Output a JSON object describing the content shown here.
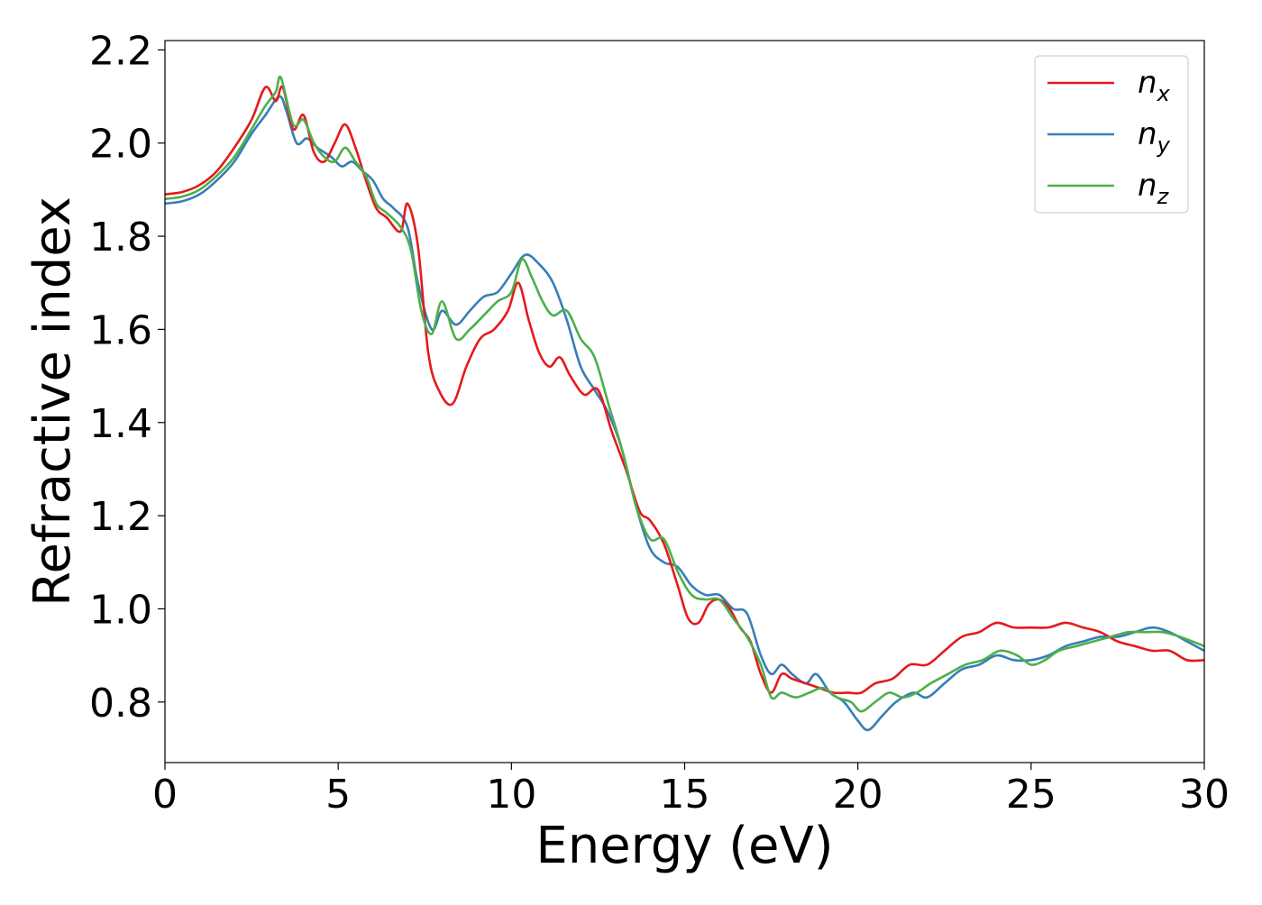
{
  "chart_data": {
    "type": "line",
    "title": "",
    "xlabel": "Energy (eV)",
    "ylabel": "Refractive index",
    "xlim": [
      0,
      30
    ],
    "ylim": [
      0.67,
      2.22
    ],
    "xticks": [
      0,
      5,
      10,
      15,
      20,
      25,
      30
    ],
    "yticks": [
      0.8,
      1.0,
      1.2,
      1.4,
      1.6,
      1.8,
      2.0,
      2.2
    ],
    "grid": false,
    "legend_position": "top-right",
    "series": [
      {
        "name": "n_x",
        "base": "n",
        "sub": "x",
        "color": "#e41a1c",
        "x": [
          0,
          0.5,
          1,
          1.5,
          2,
          2.5,
          2.9,
          3.2,
          3.4,
          3.7,
          4.0,
          4.3,
          4.6,
          4.9,
          5.2,
          5.5,
          5.8,
          6.1,
          6.4,
          6.8,
          7.0,
          7.3,
          7.6,
          7.9,
          8.3,
          8.7,
          9.1,
          9.5,
          9.9,
          10.2,
          10.5,
          10.8,
          11.1,
          11.4,
          11.7,
          12.1,
          12.5,
          12.9,
          13.3,
          13.7,
          14.0,
          14.4,
          14.8,
          15.1,
          15.4,
          15.7,
          16.0,
          16.3,
          16.6,
          16.9,
          17.2,
          17.5,
          17.8,
          18.1,
          18.5,
          18.9,
          19.3,
          19.7,
          20.1,
          20.5,
          21.0,
          21.5,
          22.0,
          22.5,
          23.0,
          23.5,
          24.0,
          24.5,
          25.0,
          25.5,
          26.0,
          26.5,
          27.0,
          27.5,
          28.0,
          28.5,
          29.0,
          29.5,
          30.0
        ],
        "y": [
          1.89,
          1.895,
          1.91,
          1.94,
          1.99,
          2.05,
          2.12,
          2.09,
          2.12,
          2.03,
          2.06,
          1.98,
          1.96,
          2.0,
          2.04,
          1.99,
          1.92,
          1.86,
          1.84,
          1.81,
          1.87,
          1.78,
          1.55,
          1.47,
          1.44,
          1.52,
          1.58,
          1.6,
          1.64,
          1.7,
          1.62,
          1.55,
          1.52,
          1.54,
          1.5,
          1.46,
          1.47,
          1.38,
          1.3,
          1.21,
          1.19,
          1.14,
          1.05,
          0.98,
          0.97,
          1.01,
          1.02,
          1.0,
          0.96,
          0.93,
          0.86,
          0.82,
          0.86,
          0.85,
          0.84,
          0.83,
          0.82,
          0.82,
          0.82,
          0.84,
          0.85,
          0.88,
          0.88,
          0.91,
          0.94,
          0.95,
          0.97,
          0.96,
          0.96,
          0.96,
          0.97,
          0.96,
          0.95,
          0.93,
          0.92,
          0.91,
          0.91,
          0.89,
          0.89
        ]
      },
      {
        "name": "n_y",
        "base": "n",
        "sub": "y",
        "color": "#377eb8",
        "x": [
          0,
          0.5,
          1,
          1.5,
          2,
          2.5,
          2.9,
          3.3,
          3.5,
          3.8,
          4.1,
          4.4,
          4.8,
          5.1,
          5.4,
          5.7,
          6.0,
          6.3,
          6.6,
          7.0,
          7.3,
          7.7,
          8.0,
          8.4,
          8.8,
          9.2,
          9.6,
          10.0,
          10.4,
          10.8,
          11.2,
          11.6,
          12.0,
          12.4,
          12.8,
          13.2,
          13.6,
          14.0,
          14.4,
          14.8,
          15.2,
          15.6,
          16.0,
          16.4,
          16.8,
          17.2,
          17.5,
          17.8,
          18.1,
          18.5,
          18.8,
          19.2,
          19.6,
          20.0,
          20.3,
          20.7,
          21.1,
          21.6,
          22.0,
          22.5,
          23.0,
          23.5,
          24.0,
          24.5,
          25.0,
          25.5,
          26.0,
          26.5,
          27.0,
          27.5,
          28.0,
          28.5,
          29.0,
          29.5,
          30.0
        ],
        "y": [
          1.87,
          1.875,
          1.89,
          1.92,
          1.96,
          2.02,
          2.06,
          2.1,
          2.07,
          2.0,
          2.01,
          1.99,
          1.97,
          1.95,
          1.96,
          1.94,
          1.92,
          1.88,
          1.86,
          1.82,
          1.7,
          1.6,
          1.64,
          1.61,
          1.64,
          1.67,
          1.68,
          1.72,
          1.76,
          1.74,
          1.7,
          1.62,
          1.52,
          1.47,
          1.42,
          1.34,
          1.22,
          1.13,
          1.1,
          1.09,
          1.05,
          1.03,
          1.03,
          1.0,
          0.99,
          0.9,
          0.86,
          0.88,
          0.86,
          0.84,
          0.86,
          0.82,
          0.8,
          0.76,
          0.74,
          0.77,
          0.8,
          0.82,
          0.81,
          0.84,
          0.87,
          0.88,
          0.9,
          0.89,
          0.89,
          0.9,
          0.92,
          0.93,
          0.94,
          0.94,
          0.95,
          0.96,
          0.95,
          0.93,
          0.91
        ]
      },
      {
        "name": "n_z",
        "base": "n",
        "sub": "z",
        "color": "#4daf4a",
        "x": [
          0,
          0.5,
          1,
          1.5,
          2,
          2.5,
          2.9,
          3.2,
          3.35,
          3.7,
          4.0,
          4.3,
          4.6,
          4.9,
          5.2,
          5.5,
          5.8,
          6.1,
          6.4,
          6.8,
          7.1,
          7.4,
          7.7,
          8.0,
          8.4,
          8.8,
          9.2,
          9.6,
          10.0,
          10.3,
          10.6,
          10.9,
          11.2,
          11.6,
          12.0,
          12.4,
          12.8,
          13.2,
          13.6,
          14.0,
          14.4,
          14.8,
          15.2,
          15.6,
          16.0,
          16.4,
          16.8,
          17.2,
          17.5,
          17.8,
          18.2,
          18.6,
          19.0,
          19.4,
          19.8,
          20.1,
          20.5,
          20.9,
          21.3,
          21.7,
          22.1,
          22.6,
          23.1,
          23.6,
          24.1,
          24.6,
          25.0,
          25.4,
          25.8,
          26.3,
          26.8,
          27.3,
          27.8,
          28.3,
          28.8,
          29.3,
          30.0
        ],
        "y": [
          1.88,
          1.885,
          1.9,
          1.93,
          1.97,
          2.03,
          2.08,
          2.11,
          2.14,
          2.04,
          2.05,
          2.0,
          1.97,
          1.96,
          1.99,
          1.96,
          1.93,
          1.87,
          1.85,
          1.82,
          1.77,
          1.64,
          1.59,
          1.66,
          1.58,
          1.6,
          1.63,
          1.66,
          1.68,
          1.75,
          1.71,
          1.66,
          1.63,
          1.64,
          1.58,
          1.54,
          1.44,
          1.34,
          1.22,
          1.15,
          1.15,
          1.08,
          1.03,
          1.02,
          1.02,
          0.98,
          0.94,
          0.88,
          0.81,
          0.82,
          0.81,
          0.82,
          0.83,
          0.81,
          0.8,
          0.78,
          0.8,
          0.82,
          0.81,
          0.82,
          0.84,
          0.86,
          0.88,
          0.89,
          0.91,
          0.9,
          0.88,
          0.89,
          0.91,
          0.92,
          0.93,
          0.94,
          0.95,
          0.95,
          0.95,
          0.94,
          0.92
        ]
      }
    ]
  }
}
